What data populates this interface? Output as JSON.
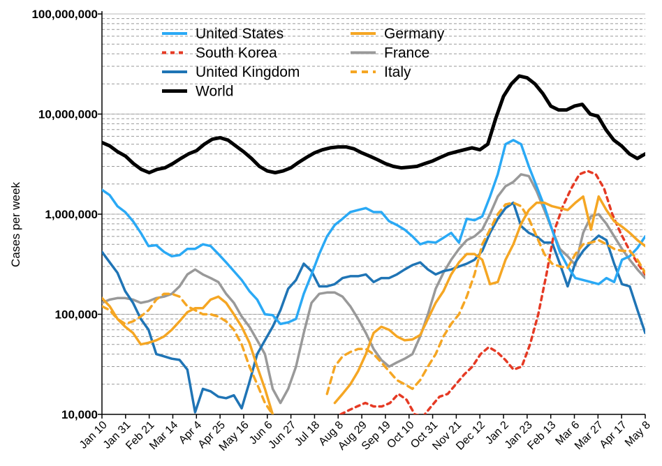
{
  "chart_data": {
    "type": "line",
    "title": "",
    "ylabel": "Cases per week",
    "xlabel": "",
    "yscale": "log",
    "ylim": [
      10000,
      100000000
    ],
    "yticks": [
      "10,000",
      "100,000",
      "1,000,000",
      "10,000,000",
      "100,000,000"
    ],
    "xtick_labels": [
      "Jan 10",
      "Jan 31",
      "Feb 21",
      "Mar 14",
      "Apr 4",
      "Apr 25",
      "May 16",
      "Jun 6",
      "Jun 27",
      "Jul 18",
      "Aug 8",
      "Aug 29",
      "Sep 19",
      "Oct 10",
      "Oct 31",
      "Nov 21",
      "Dec 12",
      "Jan 2",
      "Jan 23",
      "Feb 13",
      "Mar 6",
      "Mar 27",
      "Apr 17",
      "May 8"
    ],
    "legend_position": "top",
    "grid": "horizontal",
    "series": [
      {
        "name": "United States",
        "color": "#2aa9f5",
        "dash": "solid",
        "values": [
          1750000,
          1550000,
          1200000,
          1050000,
          850000,
          650000,
          480000,
          490000,
          420000,
          380000,
          390000,
          450000,
          450000,
          500000,
          480000,
          400000,
          330000,
          270000,
          220000,
          170000,
          140000,
          100000,
          98000,
          80000,
          83000,
          90000,
          160000,
          250000,
          400000,
          600000,
          780000,
          900000,
          1050000,
          1100000,
          1150000,
          1050000,
          1050000,
          850000,
          780000,
          700000,
          600000,
          500000,
          530000,
          520000,
          580000,
          650000,
          520000,
          900000,
          870000,
          950000,
          1500000,
          2500000,
          5000000,
          5500000,
          5000000,
          3000000,
          1900000,
          1200000,
          700000,
          420000,
          300000,
          230000,
          220000,
          210000,
          200000,
          230000,
          210000,
          350000,
          380000,
          460000,
          600000
        ]
      },
      {
        "name": "South Korea",
        "color": "#e53a24",
        "dash": "dotted",
        "values": [
          null,
          null,
          null,
          null,
          null,
          null,
          null,
          null,
          null,
          null,
          null,
          null,
          null,
          null,
          null,
          null,
          null,
          null,
          null,
          null,
          null,
          null,
          null,
          null,
          null,
          null,
          null,
          null,
          null,
          10000,
          11000,
          12000,
          13000,
          12000,
          12000,
          13000,
          16000,
          14000,
          10000,
          9500,
          12000,
          15000,
          16000,
          20000,
          25000,
          30000,
          40000,
          47000,
          42000,
          35000,
          28000,
          30000,
          50000,
          100000,
          250000,
          700000,
          1200000,
          1800000,
          2500000,
          2700000,
          2500000,
          1800000,
          1000000,
          650000,
          450000,
          330000,
          250000
        ]
      },
      {
        "name": "United Kingdom",
        "color": "#1f74b5",
        "dash": "solid",
        "values": [
          420000,
          330000,
          260000,
          170000,
          130000,
          90000,
          70000,
          40000,
          38000,
          36000,
          35000,
          28000,
          10500,
          18000,
          17000,
          15000,
          14500,
          15500,
          11500,
          21000,
          40000,
          55000,
          75000,
          110000,
          180000,
          220000,
          320000,
          270000,
          190000,
          190000,
          200000,
          230000,
          240000,
          240000,
          250000,
          210000,
          230000,
          230000,
          250000,
          280000,
          310000,
          330000,
          280000,
          250000,
          270000,
          280000,
          300000,
          320000,
          350000,
          430000,
          650000,
          900000,
          1150000,
          1300000,
          760000,
          650000,
          600000,
          520000,
          520000,
          320000,
          190000,
          330000,
          430000,
          520000,
          610000,
          550000,
          320000,
          200000,
          190000,
          110000,
          65000
        ]
      },
      {
        "name": "World",
        "color": "#000000",
        "dash": "solid",
        "width": 5,
        "values": [
          5200000,
          4800000,
          4200000,
          3800000,
          3200000,
          2800000,
          2600000,
          2800000,
          2900000,
          3200000,
          3600000,
          4000000,
          4300000,
          5000000,
          5600000,
          5800000,
          5500000,
          4800000,
          4200000,
          3600000,
          3000000,
          2700000,
          2600000,
          2700000,
          2900000,
          3300000,
          3700000,
          4100000,
          4400000,
          4600000,
          4700000,
          4700000,
          4500000,
          4100000,
          3800000,
          3500000,
          3200000,
          3000000,
          2900000,
          2950000,
          3000000,
          3200000,
          3400000,
          3700000,
          4000000,
          4200000,
          4400000,
          4600000,
          4400000,
          5000000,
          9000000,
          15000000,
          20000000,
          24000000,
          23000000,
          20000000,
          16000000,
          12000000,
          11000000,
          11000000,
          12000000,
          12500000,
          10000000,
          9500000,
          7000000,
          5500000,
          4800000,
          4000000,
          3600000,
          4000000
        ]
      },
      {
        "name": "Germany",
        "color": "#f5a623",
        "dash": "solid",
        "values": [
          145000,
          120000,
          90000,
          75000,
          65000,
          50000,
          52000,
          55000,
          60000,
          70000,
          85000,
          105000,
          115000,
          115000,
          140000,
          150000,
          130000,
          100000,
          75000,
          52000,
          30000,
          18000,
          10000,
          null,
          null,
          null,
          null,
          null,
          null,
          null,
          13000,
          16000,
          20000,
          27000,
          40000,
          65000,
          75000,
          70000,
          60000,
          55000,
          56000,
          62000,
          90000,
          130000,
          170000,
          250000,
          330000,
          400000,
          400000,
          350000,
          200000,
          210000,
          350000,
          500000,
          800000,
          1100000,
          1300000,
          1300000,
          1200000,
          1150000,
          1100000,
          1300000,
          1500000,
          700000,
          1500000,
          1100000,
          850000,
          750000,
          650000,
          550000,
          480000
        ]
      },
      {
        "name": "France",
        "color": "#999999",
        "dash": "solid",
        "values": [
          130000,
          140000,
          145000,
          145000,
          140000,
          130000,
          135000,
          145000,
          150000,
          160000,
          190000,
          250000,
          280000,
          250000,
          230000,
          210000,
          160000,
          130000,
          95000,
          75000,
          55000,
          40000,
          18000,
          13000,
          18000,
          30000,
          65000,
          130000,
          160000,
          165000,
          165000,
          150000,
          120000,
          90000,
          65000,
          45000,
          35000,
          30000,
          33000,
          36000,
          40000,
          60000,
          100000,
          180000,
          260000,
          350000,
          450000,
          550000,
          600000,
          700000,
          1000000,
          1500000,
          1900000,
          2100000,
          2500000,
          2400000,
          1700000,
          1100000,
          700000,
          450000,
          380000,
          310000,
          650000,
          950000,
          1000000,
          800000,
          600000,
          450000,
          350000,
          280000,
          230000
        ]
      },
      {
        "name": "Italy",
        "color": "#f5a623",
        "dash": "dashed",
        "values": [
          120000,
          110000,
          90000,
          80000,
          85000,
          95000,
          110000,
          140000,
          160000,
          160000,
          150000,
          120000,
          110000,
          100000,
          100000,
          95000,
          85000,
          70000,
          50000,
          30000,
          20000,
          13000,
          10000,
          null,
          null,
          null,
          null,
          null,
          null,
          16000,
          30000,
          38000,
          42000,
          45000,
          45000,
          40000,
          33000,
          27000,
          22000,
          20000,
          18000,
          22000,
          30000,
          40000,
          60000,
          80000,
          100000,
          150000,
          250000,
          500000,
          700000,
          1000000,
          1250000,
          1300000,
          1200000,
          900000,
          600000,
          400000,
          320000,
          300000,
          290000,
          400000,
          500000,
          520000,
          550000,
          500000,
          450000,
          430000,
          430000,
          350000,
          260000
        ]
      }
    ]
  }
}
